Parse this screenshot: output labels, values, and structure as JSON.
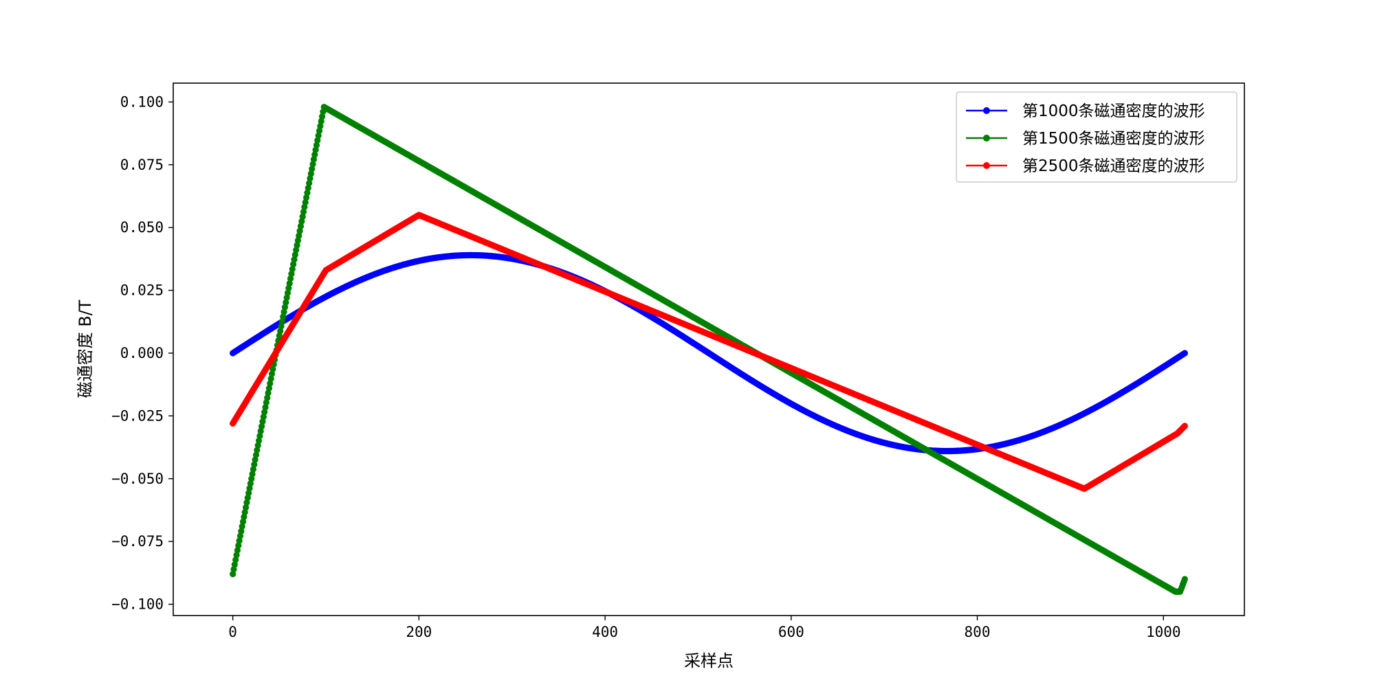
{
  "chart_data": {
    "type": "line",
    "xlabel": "采样点",
    "ylabel": "磁通密度 B/T",
    "xlim": [
      -64,
      1087
    ],
    "ylim": [
      -0.1045,
      0.1075
    ],
    "xticks": [
      0,
      200,
      400,
      600,
      800,
      1000
    ],
    "xtick_labels": [
      "0",
      "200",
      "400",
      "600",
      "800",
      "1000"
    ],
    "yticks": [
      0.1,
      0.075,
      0.05,
      0.025,
      0.0,
      -0.025,
      -0.05,
      -0.075,
      -0.1
    ],
    "ytick_labels": [
      "0.100",
      "0.075",
      "0.050",
      "0.025",
      "0.000",
      "−0.025",
      "−0.050",
      "−0.075",
      "−0.100"
    ],
    "grid": false,
    "legend_position": "top-right",
    "series": [
      {
        "name": "第1000条磁通密度的波形",
        "color": "#0000ff",
        "shape": "sine",
        "n_points": 1024,
        "amplitude": 0.039,
        "points": [
          [
            0,
            0.0
          ],
          [
            100,
            0.0227
          ],
          [
            200,
            0.0365
          ],
          [
            256,
            0.039
          ],
          [
            400,
            0.022
          ],
          [
            512,
            0.0
          ],
          [
            600,
            -0.0185
          ],
          [
            700,
            -0.0355
          ],
          [
            768,
            -0.039
          ],
          [
            900,
            -0.0265
          ],
          [
            1023,
            0.0
          ]
        ]
      },
      {
        "name": "第1500条磁通密度的波形",
        "color": "#008000",
        "shape": "piecewise",
        "n_points": 1024,
        "points": [
          [
            0,
            -0.088
          ],
          [
            98,
            0.098
          ],
          [
            1013,
            -0.095
          ],
          [
            1018,
            -0.095
          ],
          [
            1023,
            -0.09
          ]
        ]
      },
      {
        "name": "第2500条磁通密度的波形",
        "color": "#ff0000",
        "shape": "piecewise",
        "n_points": 1024,
        "points": [
          [
            0,
            -0.028
          ],
          [
            100,
            0.033
          ],
          [
            200,
            0.055
          ],
          [
            915,
            -0.054
          ],
          [
            1015,
            -0.032
          ],
          [
            1023,
            -0.029
          ]
        ]
      }
    ]
  }
}
